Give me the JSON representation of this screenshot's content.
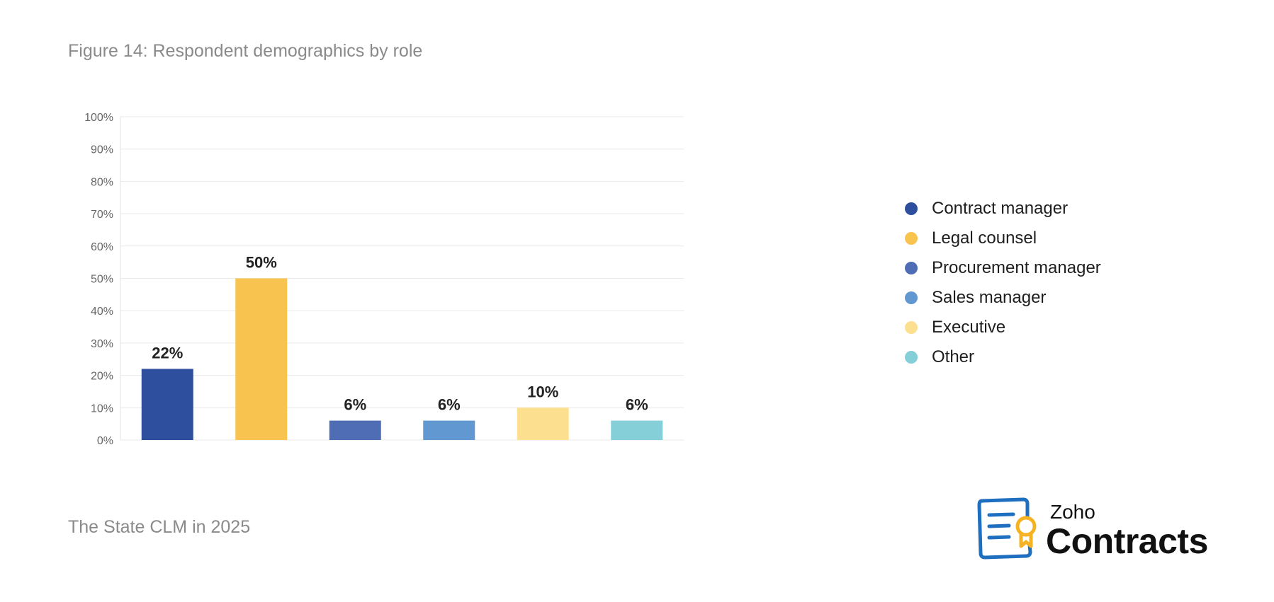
{
  "chart_data": {
    "type": "bar",
    "title": "Figure 14: Respondent demographics by role",
    "categories": [
      "Contract manager",
      "Legal counsel",
      "Procurement manager",
      "Sales manager",
      "Executive",
      "Other"
    ],
    "values": [
      22,
      50,
      6,
      6,
      10,
      6
    ],
    "data_labels": [
      "22%",
      "50%",
      "6%",
      "6%",
      "10%",
      "6%"
    ],
    "colors": [
      "#2e4f9e",
      "#f9c350",
      "#4e6db5",
      "#6198d2",
      "#fde08f",
      "#85cfd9"
    ],
    "ylim": [
      0,
      100
    ],
    "yticks": [
      "0%",
      "10%",
      "20%",
      "30%",
      "40%",
      "50%",
      "60%",
      "70%",
      "80%",
      "90%",
      "100%"
    ],
    "xlabel": "",
    "ylabel": "",
    "grid": true,
    "legend_position": "right"
  },
  "footer": "The State CLM in 2025",
  "logo": {
    "brand_small": "Zoho",
    "brand_big": "Contracts",
    "icon": "contract-document-with-ribbon-icon",
    "primary_color": "#1f6fc0",
    "accent_color": "#f5b324"
  }
}
